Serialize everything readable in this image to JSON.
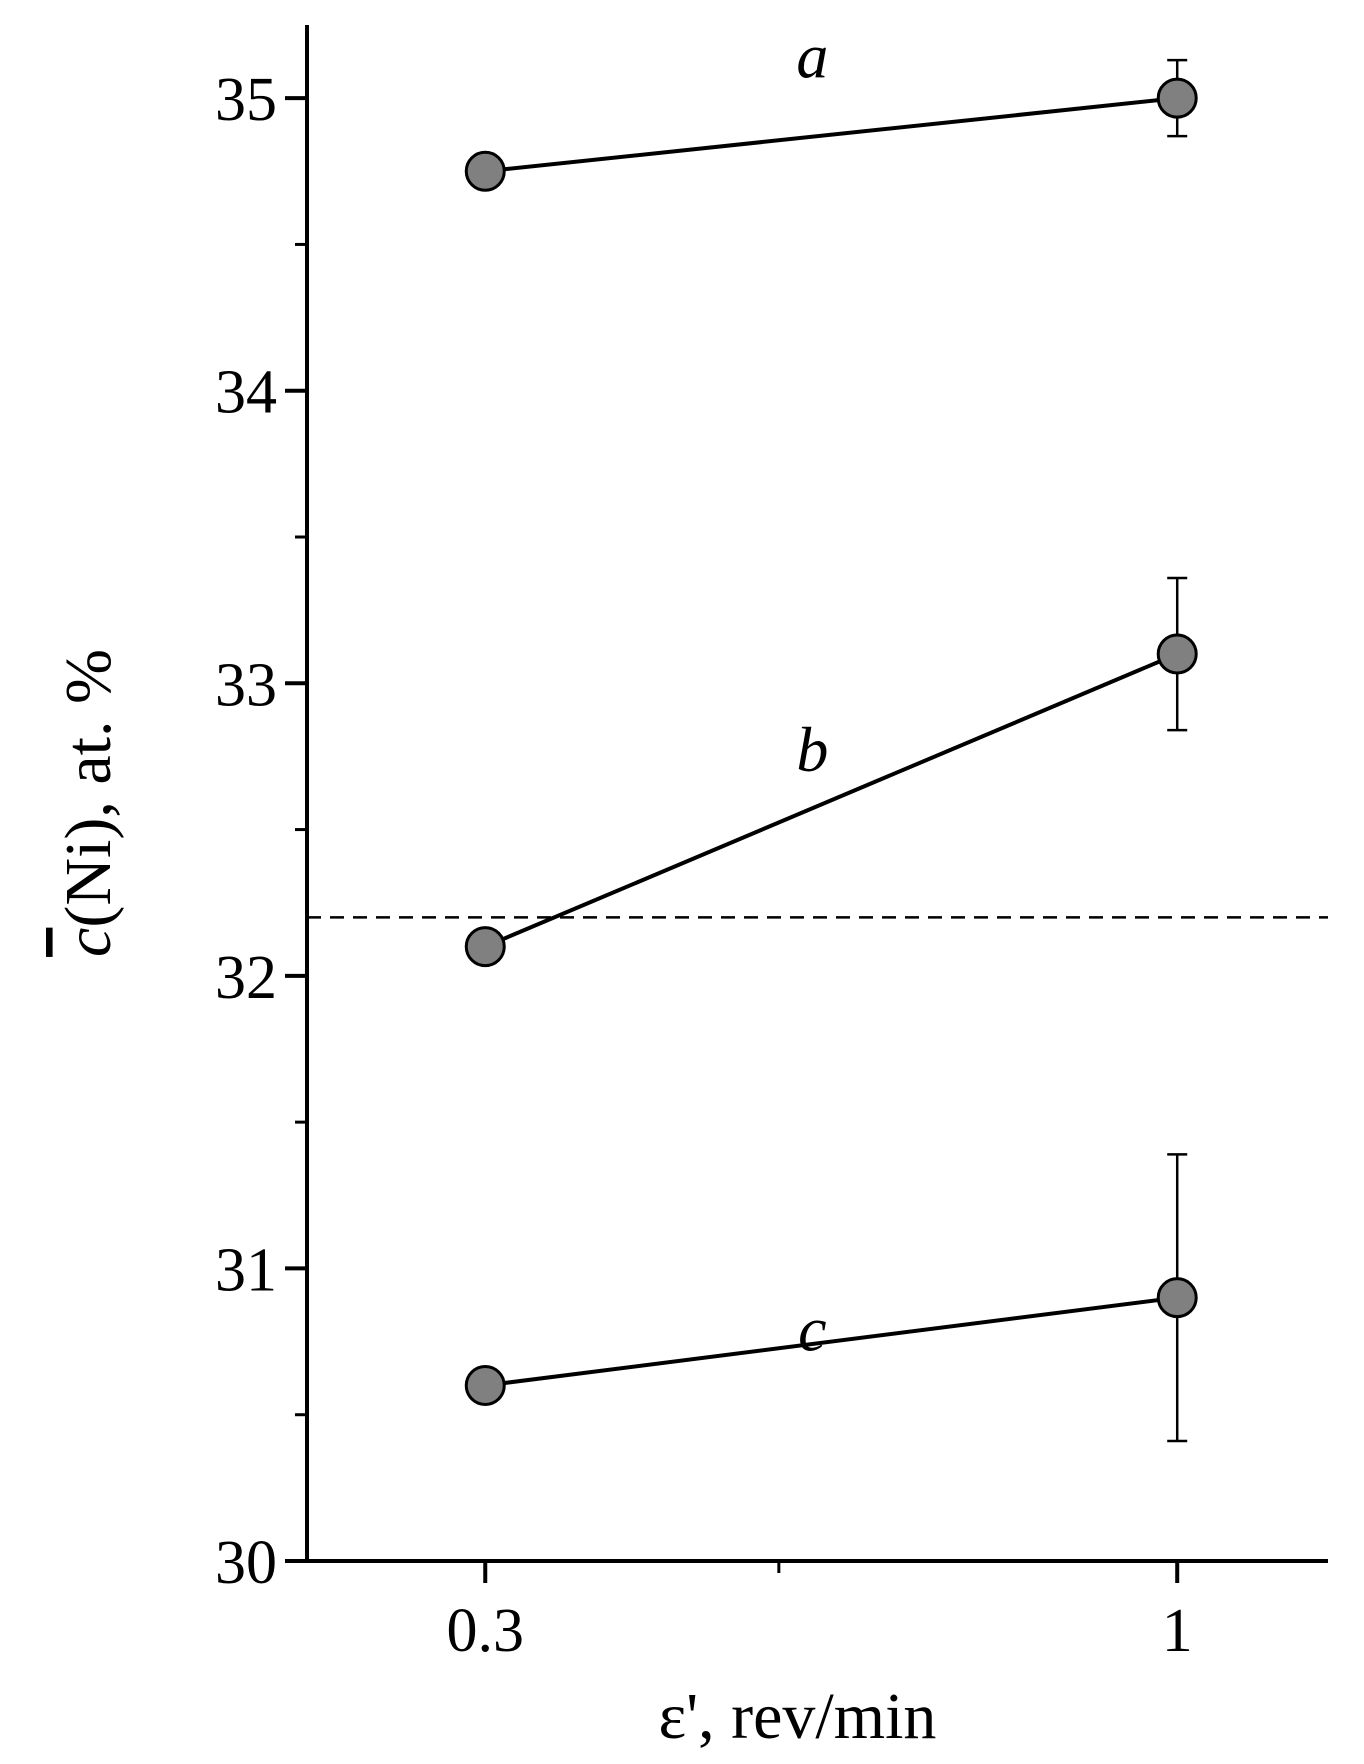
{
  "chart_data": {
    "type": "scatter",
    "xlabel": "ε', rev/min",
    "ylabel_symbol": "c",
    "ylabel_rest": "(Ni), at. %",
    "x_ticks": [
      {
        "value": 0.3,
        "label": "0.3"
      },
      {
        "value": 1,
        "label": "1"
      }
    ],
    "x_minor_ticks": [
      0.5
    ],
    "x_scale": "log",
    "xlim": [
      0.22,
      1.3
    ],
    "ylim": [
      30,
      35.25
    ],
    "y_ticks": [
      {
        "value": 30,
        "label": "30"
      },
      {
        "value": 31,
        "label": "31"
      },
      {
        "value": 32,
        "label": "32"
      },
      {
        "value": 33,
        "label": "33"
      },
      {
        "value": 34,
        "label": "34"
      },
      {
        "value": 35,
        "label": "35"
      }
    ],
    "y_minor_ticks": [
      30.5,
      31.5,
      32.5,
      33.5,
      34.5
    ],
    "reference_line": {
      "y": 32.2,
      "style": "dashed"
    },
    "marker_color": "#808080",
    "series": [
      {
        "name": "a",
        "x": [
          0.3,
          1
        ],
        "y": [
          34.75,
          35.0
        ],
        "yerr": [
          0,
          0.13
        ],
        "label_at": {
          "x": 0.53,
          "y": 35.07
        }
      },
      {
        "name": "b",
        "x": [
          0.3,
          1
        ],
        "y": [
          32.1,
          33.1
        ],
        "yerr": [
          0,
          0.26
        ],
        "label_at": {
          "x": 0.53,
          "y": 32.7
        }
      },
      {
        "name": "c",
        "x": [
          0.3,
          1
        ],
        "y": [
          30.6,
          30.9
        ],
        "yerr": [
          0,
          0.49
        ],
        "label_at": {
          "x": 0.53,
          "y": 30.72
        }
      }
    ]
  }
}
